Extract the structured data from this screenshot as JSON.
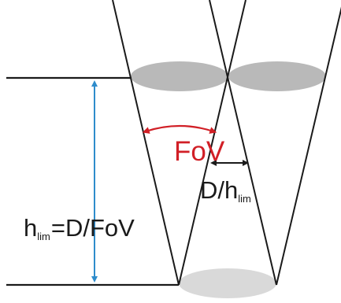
{
  "labels": {
    "fov": "FoV",
    "d_over_h": {
      "main": "D/h",
      "sub": "lim"
    },
    "h_lim_formula": {
      "h": "h",
      "sub": "lim",
      "rest": "D/FoV",
      "equals": "="
    }
  },
  "colors": {
    "line": "#1a1a1a",
    "ellipse_top": "#b9b9b9",
    "ellipse_bottom": "#d9d9d9",
    "fov_accent": "#d11f26",
    "height_arrow": "#2e8ccb",
    "background": "#ffffff"
  }
}
